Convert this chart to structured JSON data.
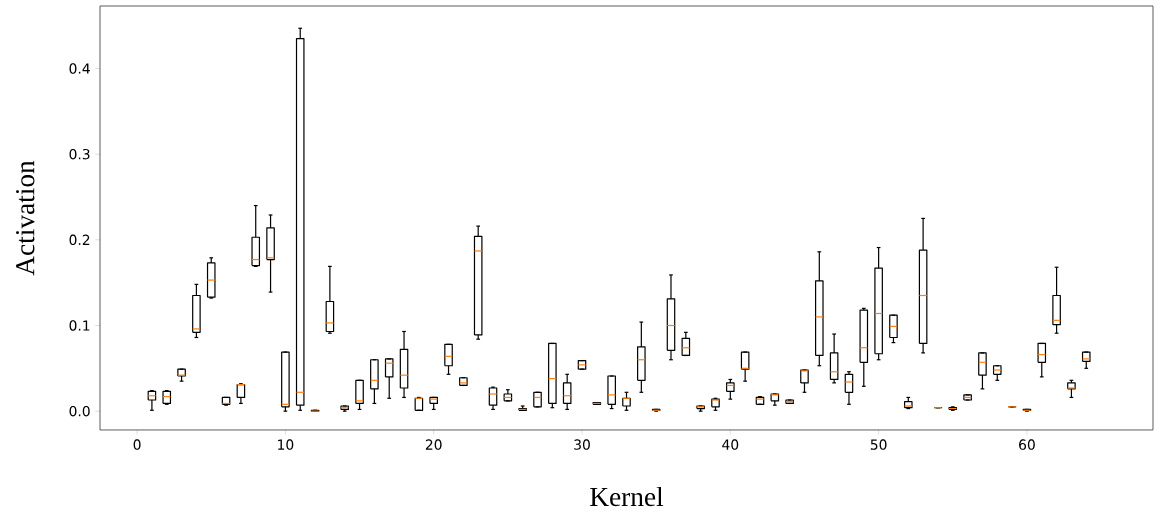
{
  "chart_data": {
    "type": "box",
    "xlabel": "Kernel",
    "ylabel": "Activation",
    "color": "#000000",
    "x": [
      1,
      2,
      3,
      4,
      5,
      6,
      7,
      8,
      9,
      10,
      11,
      12,
      13,
      14,
      15,
      16,
      17,
      18,
      19,
      20,
      21,
      22,
      23,
      24,
      25,
      26,
      27,
      28,
      29,
      30,
      31,
      32,
      33,
      34,
      35,
      36,
      37,
      38,
      39,
      40,
      41,
      42,
      43,
      44,
      45,
      46,
      47,
      48,
      49,
      50,
      51,
      52,
      53,
      54,
      55,
      56,
      57,
      58,
      59,
      60,
      61,
      62,
      63,
      64
    ],
    "xlim": [
      -2.5,
      68.5
    ],
    "xticks": [
      0,
      10,
      20,
      30,
      40,
      50,
      60
    ],
    "ylim": [
      -0.022,
      0.473
    ],
    "yticks": [
      {
        "value": 0,
        "label": "0.0"
      },
      {
        "value": 0.1,
        "label": "0.1"
      },
      {
        "value": 0.2,
        "label": "0.2"
      },
      {
        "value": 0.3,
        "label": "0.3"
      },
      {
        "value": 0.4,
        "label": "0.4"
      }
    ],
    "boxes": [
      {
        "low": 0.001,
        "q1": 0.013,
        "median": 0.018,
        "q3": 0.023,
        "high": 0.024
      },
      {
        "low": 0.008,
        "q1": 0.009,
        "median": 0.017,
        "q3": 0.023,
        "high": 0.024
      },
      {
        "low": 0.035,
        "q1": 0.041,
        "median": 0.042,
        "q3": 0.049,
        "high": 0.049
      },
      {
        "low": 0.086,
        "q1": 0.092,
        "median": 0.096,
        "q3": 0.135,
        "high": 0.148
      },
      {
        "low": 0.132,
        "q1": 0.133,
        "median": 0.153,
        "q3": 0.173,
        "high": 0.179
      },
      {
        "low": 0.007,
        "q1": 0.008,
        "median": 0.009,
        "q3": 0.016,
        "high": 0.016
      },
      {
        "low": 0.009,
        "q1": 0.016,
        "median": 0.031,
        "q3": 0.031,
        "high": 0.032
      },
      {
        "low": 0.169,
        "q1": 0.17,
        "median": 0.177,
        "q3": 0.203,
        "high": 0.24
      },
      {
        "low": 0.139,
        "q1": 0.177,
        "median": 0.179,
        "q3": 0.214,
        "high": 0.229
      },
      {
        "low": 0.0,
        "q1": 0.005,
        "median": 0.008,
        "q3": 0.069,
        "high": 0.069
      },
      {
        "low": 0.001,
        "q1": 0.007,
        "median": 0.022,
        "q3": 0.435,
        "high": 0.447
      },
      {
        "low": 0.0,
        "q1": 0.0,
        "median": 0.0,
        "q3": 0.001,
        "high": 0.001
      },
      {
        "low": 0.091,
        "q1": 0.093,
        "median": 0.103,
        "q3": 0.128,
        "high": 0.169
      },
      {
        "low": 0.0,
        "q1": 0.002,
        "median": 0.004,
        "q3": 0.006,
        "high": 0.006
      },
      {
        "low": 0.002,
        "q1": 0.009,
        "median": 0.012,
        "q3": 0.036,
        "high": 0.036
      },
      {
        "low": 0.009,
        "q1": 0.026,
        "median": 0.036,
        "q3": 0.06,
        "high": 0.06
      },
      {
        "low": 0.015,
        "q1": 0.04,
        "median": 0.056,
        "q3": 0.061,
        "high": 0.061
      },
      {
        "low": 0.016,
        "q1": 0.027,
        "median": 0.042,
        "q3": 0.072,
        "high": 0.093
      },
      {
        "low": 0.001,
        "q1": 0.001,
        "median": 0.015,
        "q3": 0.015,
        "high": 0.016
      },
      {
        "low": 0.002,
        "q1": 0.009,
        "median": 0.014,
        "q3": 0.016,
        "high": 0.016
      },
      {
        "low": 0.043,
        "q1": 0.053,
        "median": 0.064,
        "q3": 0.078,
        "high": 0.078
      },
      {
        "low": 0.03,
        "q1": 0.03,
        "median": 0.033,
        "q3": 0.039,
        "high": 0.039
      },
      {
        "low": 0.084,
        "q1": 0.089,
        "median": 0.187,
        "q3": 0.204,
        "high": 0.216
      },
      {
        "low": 0.002,
        "q1": 0.007,
        "median": 0.02,
        "q3": 0.027,
        "high": 0.028
      },
      {
        "low": 0.012,
        "q1": 0.012,
        "median": 0.016,
        "q3": 0.02,
        "high": 0.025
      },
      {
        "low": 0.001,
        "q1": 0.001,
        "median": 0.002,
        "q3": 0.003,
        "high": 0.006
      },
      {
        "low": 0.005,
        "q1": 0.005,
        "median": 0.016,
        "q3": 0.022,
        "high": 0.022
      },
      {
        "low": 0.004,
        "q1": 0.009,
        "median": 0.038,
        "q3": 0.079,
        "high": 0.079
      },
      {
        "low": 0.002,
        "q1": 0.009,
        "median": 0.018,
        "q3": 0.033,
        "high": 0.043
      },
      {
        "low": 0.049,
        "q1": 0.049,
        "median": 0.054,
        "q3": 0.059,
        "high": 0.059
      },
      {
        "low": 0.008,
        "q1": 0.008,
        "median": 0.009,
        "q3": 0.01,
        "high": 0.01
      },
      {
        "low": 0.003,
        "q1": 0.008,
        "median": 0.019,
        "q3": 0.041,
        "high": 0.041
      },
      {
        "low": 0.001,
        "q1": 0.006,
        "median": 0.015,
        "q3": 0.015,
        "high": 0.022
      },
      {
        "low": 0.022,
        "q1": 0.036,
        "median": 0.06,
        "q3": 0.075,
        "high": 0.104
      },
      {
        "low": 0.0,
        "q1": 0.001,
        "median": 0.001,
        "q3": 0.002,
        "high": 0.002
      },
      {
        "low": 0.06,
        "q1": 0.071,
        "median": 0.1,
        "q3": 0.131,
        "high": 0.159
      },
      {
        "low": 0.065,
        "q1": 0.065,
        "median": 0.074,
        "q3": 0.085,
        "high": 0.092
      },
      {
        "low": 0.0,
        "q1": 0.003,
        "median": 0.005,
        "q3": 0.006,
        "high": 0.006
      },
      {
        "low": 0.001,
        "q1": 0.005,
        "median": 0.013,
        "q3": 0.014,
        "high": 0.015
      },
      {
        "low": 0.014,
        "q1": 0.023,
        "median": 0.03,
        "q3": 0.033,
        "high": 0.037
      },
      {
        "low": 0.035,
        "q1": 0.049,
        "median": 0.05,
        "q3": 0.069,
        "high": 0.069
      },
      {
        "low": 0.008,
        "q1": 0.008,
        "median": 0.014,
        "q3": 0.016,
        "high": 0.017
      },
      {
        "low": 0.007,
        "q1": 0.012,
        "median": 0.019,
        "q3": 0.02,
        "high": 0.02
      },
      {
        "low": 0.009,
        "q1": 0.009,
        "median": 0.011,
        "q3": 0.013,
        "high": 0.013
      },
      {
        "low": 0.022,
        "q1": 0.033,
        "median": 0.047,
        "q3": 0.048,
        "high": 0.048
      },
      {
        "low": 0.053,
        "q1": 0.065,
        "median": 0.11,
        "q3": 0.152,
        "high": 0.186
      },
      {
        "low": 0.033,
        "q1": 0.037,
        "median": 0.046,
        "q3": 0.068,
        "high": 0.09
      },
      {
        "low": 0.008,
        "q1": 0.022,
        "median": 0.034,
        "q3": 0.043,
        "high": 0.046
      },
      {
        "low": 0.029,
        "q1": 0.057,
        "median": 0.074,
        "q3": 0.118,
        "high": 0.12
      },
      {
        "low": 0.06,
        "q1": 0.067,
        "median": 0.114,
        "q3": 0.167,
        "high": 0.191
      },
      {
        "low": 0.08,
        "q1": 0.086,
        "median": 0.099,
        "q3": 0.112,
        "high": 0.112
      },
      {
        "low": 0.003,
        "q1": 0.004,
        "median": 0.006,
        "q3": 0.011,
        "high": 0.016
      },
      {
        "low": 0.068,
        "q1": 0.079,
        "median": 0.135,
        "q3": 0.188,
        "high": 0.225
      },
      {
        "low": 0.004,
        "q1": 0.004,
        "median": 0.004,
        "q3": 0.004,
        "high": 0.004
      },
      {
        "low": 0.001,
        "q1": 0.002,
        "median": 0.003,
        "q3": 0.004,
        "high": 0.005
      },
      {
        "low": 0.013,
        "q1": 0.013,
        "median": 0.016,
        "q3": 0.019,
        "high": 0.019
      },
      {
        "low": 0.026,
        "q1": 0.042,
        "median": 0.057,
        "q3": 0.068,
        "high": 0.068
      },
      {
        "low": 0.036,
        "q1": 0.043,
        "median": 0.048,
        "q3": 0.053,
        "high": 0.053
      },
      {
        "low": 0.005,
        "q1": 0.005,
        "median": 0.005,
        "q3": 0.005,
        "high": 0.005
      },
      {
        "low": 0.0,
        "q1": 0.001,
        "median": 0.001,
        "q3": 0.002,
        "high": 0.002
      },
      {
        "low": 0.04,
        "q1": 0.057,
        "median": 0.066,
        "q3": 0.079,
        "high": 0.079
      },
      {
        "low": 0.091,
        "q1": 0.101,
        "median": 0.106,
        "q3": 0.135,
        "high": 0.168
      },
      {
        "low": 0.016,
        "q1": 0.026,
        "median": 0.027,
        "q3": 0.033,
        "high": 0.036
      },
      {
        "low": 0.05,
        "q1": 0.058,
        "median": 0.061,
        "q3": 0.069,
        "high": 0.069
      }
    ]
  }
}
